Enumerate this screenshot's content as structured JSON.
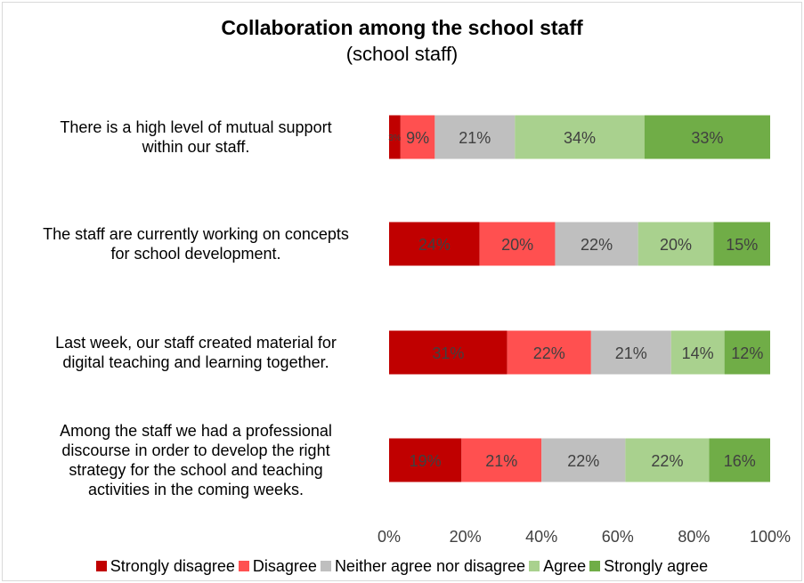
{
  "chart_data": {
    "type": "bar",
    "orientation": "horizontal-stacked-100",
    "title": "Collaboration among the school staff",
    "subtitle": "(school staff)",
    "categories": [
      "There is a high level of mutual support within our staff.",
      "The staff are currently working on concepts for school development.",
      "Last week, our staff created material for digital teaching and learning together.",
      "Among the staff we had a professional discourse in order to develop the right strategy for the school and teaching activities in the coming weeks."
    ],
    "series": [
      {
        "name": "Strongly disagree",
        "color": "#c00000",
        "values": [
          3,
          24,
          31,
          19
        ]
      },
      {
        "name": "Disagree",
        "color": "#ff5050",
        "values": [
          9,
          20,
          22,
          21
        ]
      },
      {
        "name": "Neither agree nor disagree",
        "color": "#bfbfbf",
        "values": [
          21,
          22,
          21,
          22
        ]
      },
      {
        "name": "Agree",
        "color": "#a9d18e",
        "values": [
          34,
          20,
          14,
          22
        ]
      },
      {
        "name": "Strongly agree",
        "color": "#70ad47",
        "values": [
          33,
          15,
          12,
          16
        ]
      }
    ],
    "xlim": [
      0,
      100
    ],
    "x_ticks": [
      "0%",
      "20%",
      "40%",
      "60%",
      "80%",
      "100%"
    ],
    "value_suffix": "%",
    "legend": "bottom",
    "grid": false
  }
}
